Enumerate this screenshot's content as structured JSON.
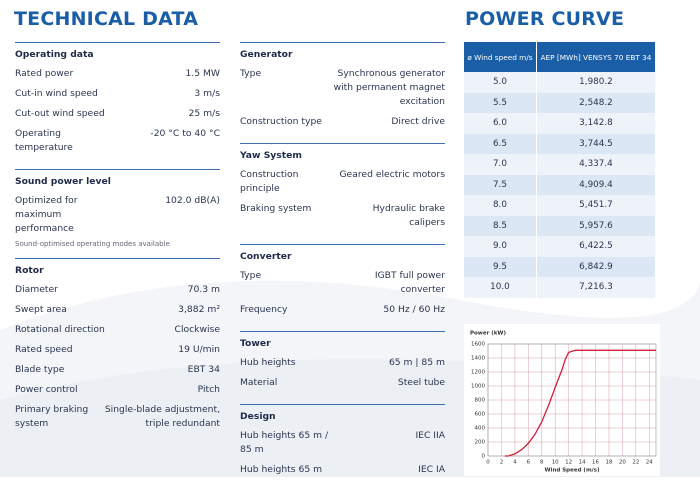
{
  "header": {
    "title": "TECHNICAL DATA"
  },
  "columns": [
    [
      {
        "title": "Operating data",
        "rows": [
          [
            "Rated power",
            "1.5 MW"
          ],
          [
            "Cut-in wind speed",
            "3 m/s"
          ],
          [
            "Cut-out wind speed",
            "25 m/s"
          ],
          [
            "Operating temperature",
            "-20 °C to 40 °C"
          ]
        ]
      },
      {
        "title": "Sound power level",
        "rows": [
          [
            "Optimized for maximum performance",
            "102.0 dB(A)"
          ]
        ],
        "note": "Sound-optimised operating modes available"
      },
      {
        "title": "Rotor",
        "rows": [
          [
            "Diameter",
            "70.3 m"
          ],
          [
            "Swept area",
            "3,882 m²"
          ],
          [
            "Rotational direction",
            "Clockwise"
          ],
          [
            "Rated speed",
            "19 U/min"
          ],
          [
            "Blade type",
            "EBT 34"
          ],
          [
            "Power control",
            "Pitch"
          ],
          [
            "Primary braking system",
            "Single-blade adjustment, triple redundant"
          ]
        ]
      }
    ],
    [
      {
        "title": "Generator",
        "rows": [
          [
            "Type",
            "Synchronous generator with permanent magnet excitation"
          ],
          [
            "Construction type",
            "Direct drive"
          ]
        ]
      },
      {
        "title": "Yaw System",
        "rows": [
          [
            "Construction principle",
            "Geared electric motors"
          ],
          [
            "Braking system",
            "Hydraulic brake calipers"
          ]
        ]
      },
      {
        "title": "Converter",
        "rows": [
          [
            "Type",
            "IGBT full power converter"
          ],
          [
            "Frequency",
            "50 Hz / 60 Hz"
          ]
        ]
      },
      {
        "title": "Tower",
        "rows": [
          [
            "Hub heights",
            "65 m | 85 m"
          ],
          [
            "Material",
            "Steel tube"
          ]
        ]
      },
      {
        "title": "Design",
        "rows": [
          [
            "Hub heights 65 m / 85 m",
            "IEC IIA"
          ],
          [
            "Hub heights 65 m",
            "IEC IA"
          ]
        ]
      }
    ]
  ],
  "power_curve": {
    "title": "POWER CURVE",
    "table": {
      "headers": [
        "ø Wind speed m/s",
        "AEP [MWh] VENSYS 70 EBT 34"
      ],
      "rows": [
        [
          "5.0",
          "1,980.2"
        ],
        [
          "5.5",
          "2,548.2"
        ],
        [
          "6.0",
          "3,142.8"
        ],
        [
          "6.5",
          "3,744.5"
        ],
        [
          "7.0",
          "4,337.4"
        ],
        [
          "7.5",
          "4,909.4"
        ],
        [
          "8.0",
          "5,451.7"
        ],
        [
          "8.5",
          "5,957.6"
        ],
        [
          "9.0",
          "6,422.5"
        ],
        [
          "9.5",
          "6,842.9"
        ],
        [
          "10.0",
          "7,216.3"
        ]
      ]
    }
  },
  "chart_data": {
    "type": "line",
    "y_label": "Power (kW)",
    "x_label": "Wind Speed (m/s)",
    "grid": true,
    "x": [
      2.5,
      3,
      4,
      5,
      6,
      7,
      8,
      9,
      10,
      11,
      11.5,
      12,
      13,
      14,
      16,
      18,
      20,
      22,
      24,
      25
    ],
    "series": [
      {
        "color": "#d0203a",
        "values": [
          0,
          0,
          30,
          90,
          180,
          310,
          490,
          720,
          980,
          1230,
          1380,
          1480,
          1510,
          1510,
          1510,
          1510,
          1510,
          1510,
          1510,
          1510
        ]
      }
    ],
    "xlim": [
      0,
      25
    ],
    "xticks": [
      0,
      2,
      4,
      6,
      8,
      10,
      12,
      14,
      16,
      18,
      20,
      22,
      24
    ],
    "ylim": [
      0,
      1600
    ],
    "yticks": [
      0,
      200,
      400,
      600,
      800,
      1000,
      1200,
      1400,
      1600
    ]
  }
}
